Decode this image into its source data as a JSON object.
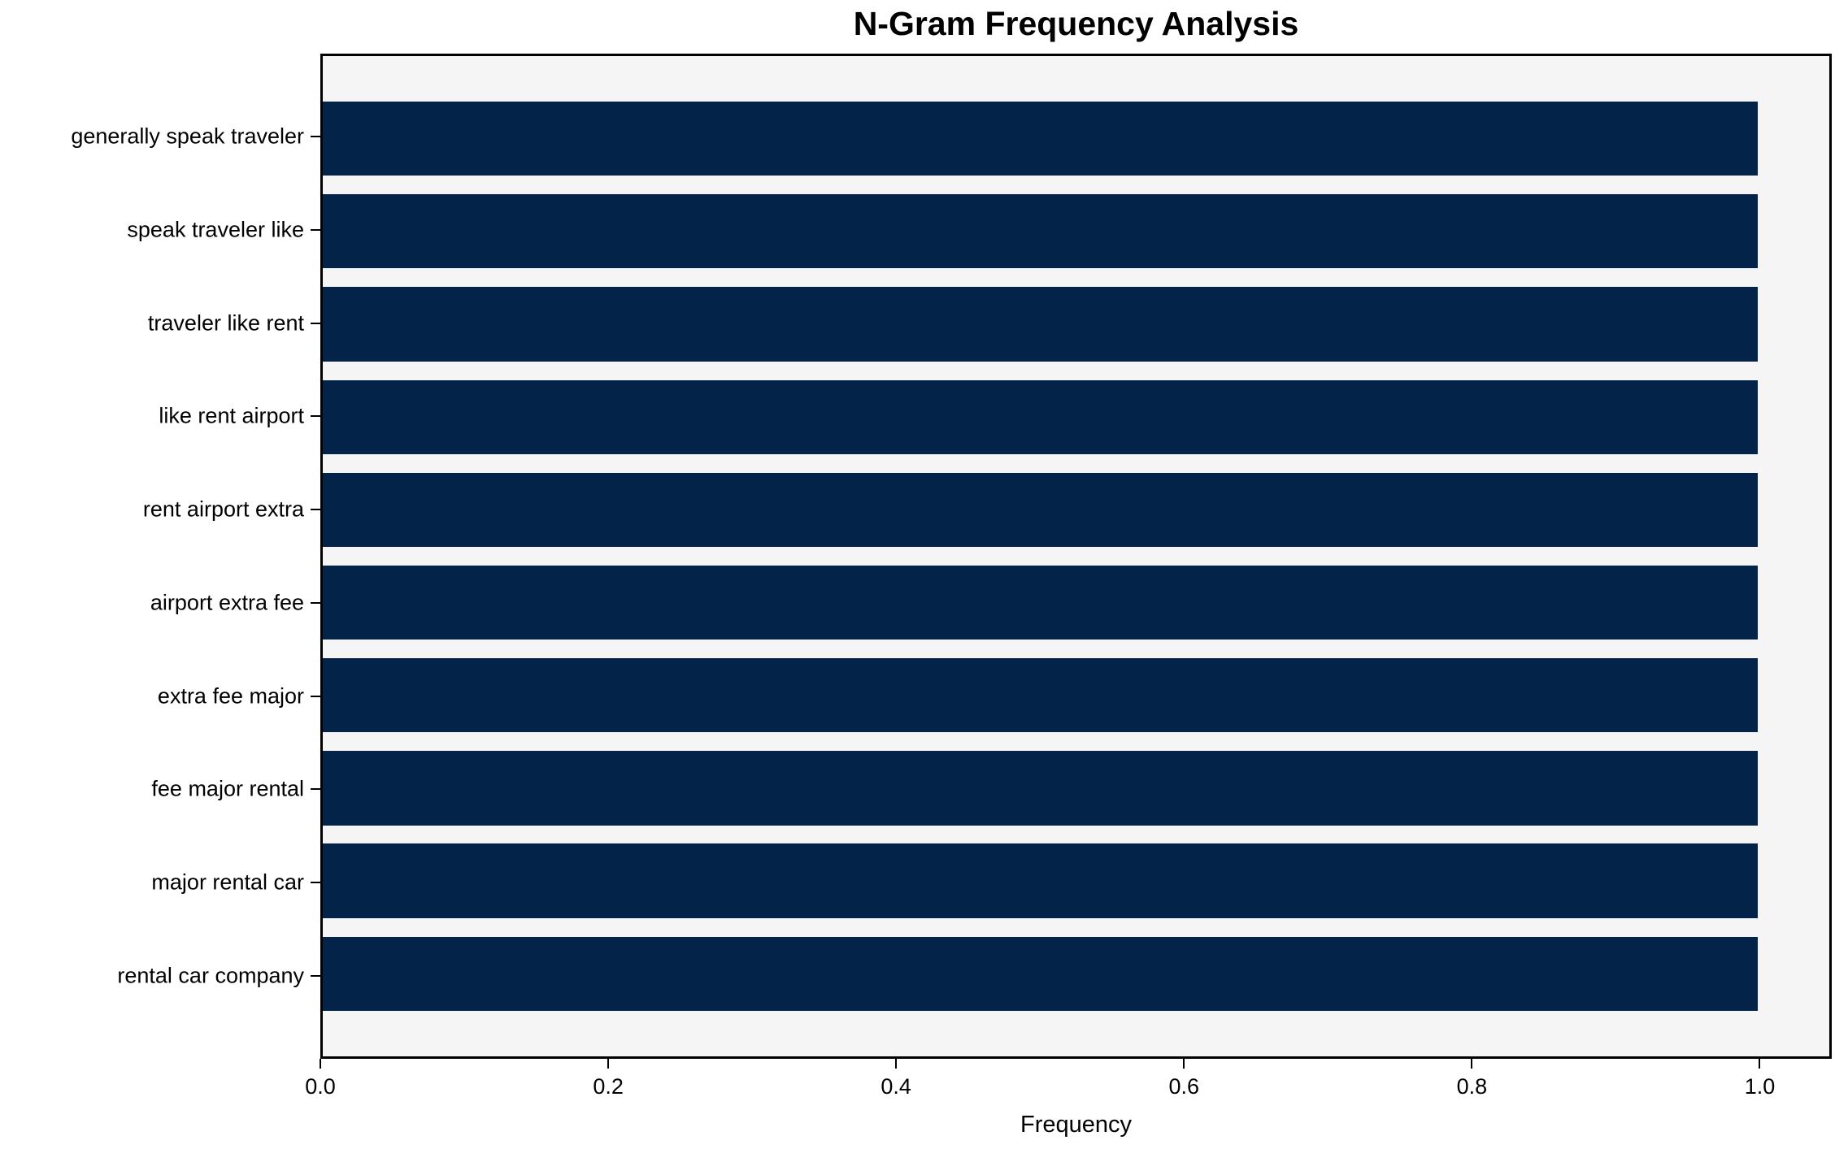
{
  "chart_data": {
    "type": "bar",
    "orientation": "horizontal",
    "title": "N-Gram Frequency Analysis",
    "xlabel": "Frequency",
    "ylabel": "",
    "categories": [
      "generally speak traveler",
      "speak traveler like",
      "traveler like rent",
      "like rent airport",
      "rent airport extra",
      "airport extra fee",
      "extra fee major",
      "fee major rental",
      "major rental car",
      "rental car company"
    ],
    "values": [
      1.0,
      1.0,
      1.0,
      1.0,
      1.0,
      1.0,
      1.0,
      1.0,
      1.0,
      1.0
    ],
    "xlim": [
      0,
      1.05
    ],
    "xticks": [
      0.0,
      0.2,
      0.4,
      0.6,
      0.8,
      1.0
    ],
    "xtick_labels": [
      "0.0",
      "0.2",
      "0.4",
      "0.6",
      "0.8",
      "1.0"
    ],
    "grid": false,
    "legend": null,
    "bar_color": "#032349",
    "plot_background": "#f5f5f5",
    "figure_background": "#ffffff",
    "text_color": "#000000"
  }
}
